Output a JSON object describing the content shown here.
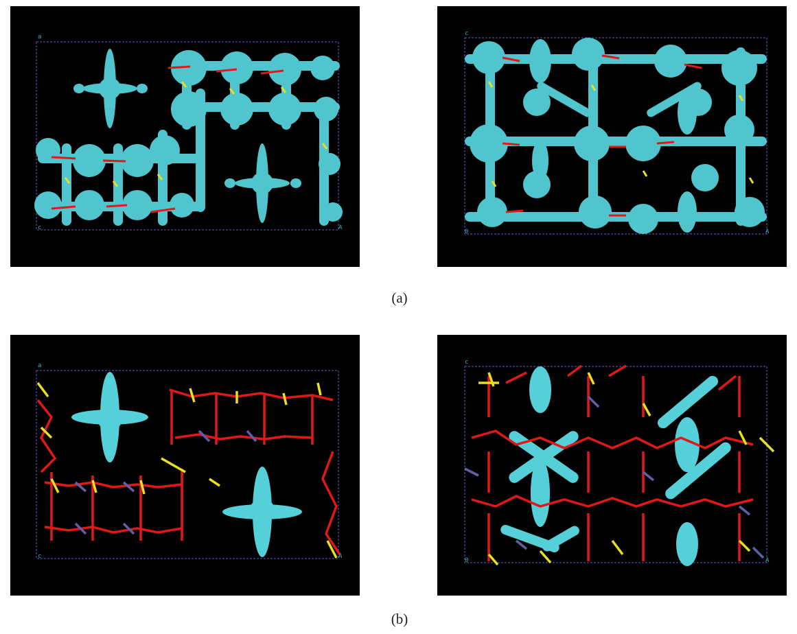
{
  "figure": {
    "rows": [
      {
        "caption": "(a)",
        "panels": [
          {
            "style": "density",
            "corner_labels": {
              "top_left": "a",
              "bottom_left": "c",
              "bottom_right": "A"
            }
          },
          {
            "style": "density",
            "corner_labels": {
              "top_left": "c",
              "bottom_left": "0",
              "bottom_right": "A"
            }
          }
        ]
      },
      {
        "caption": "(b)",
        "panels": [
          {
            "style": "framework",
            "corner_labels": {
              "top_left": "a",
              "bottom_left": "c",
              "bottom_right": "A"
            }
          },
          {
            "style": "framework",
            "corner_labels": {
              "top_left": "c",
              "bottom_left": "0",
              "bottom_right": "A"
            }
          }
        ]
      }
    ],
    "colors": {
      "background": "#000000",
      "density_surface": "#55d0d8",
      "oxygen_bond": "#e01818",
      "silicon_bond": "#e8e020",
      "metal_atom": "#6060a8",
      "cell_edge": "#5a5ad0"
    }
  }
}
